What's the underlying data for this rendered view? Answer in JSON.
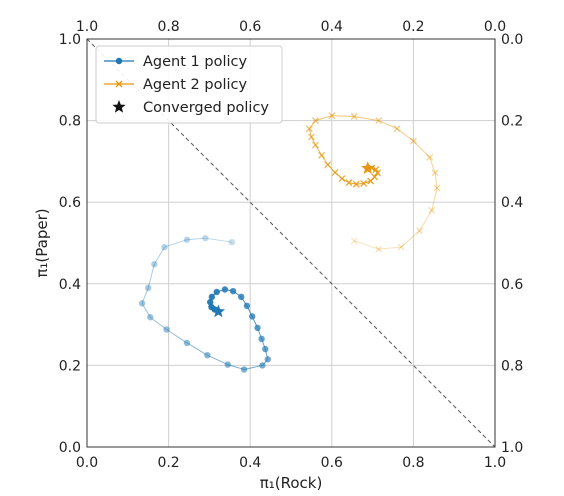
{
  "chart_data": {
    "type": "scatter",
    "xlabel": "π₁(Rock)",
    "ylabel": "π₁(Paper)",
    "xlim": [
      0.0,
      1.0
    ],
    "ylim": [
      0.0,
      1.0
    ],
    "grid": true,
    "legend_position": "top-left",
    "bottom_ticks": [
      "0.0",
      "0.2",
      "0.4",
      "0.6",
      "0.8",
      "1.0"
    ],
    "left_ticks": [
      "0.0",
      "0.2",
      "0.4",
      "0.6",
      "0.8",
      "1.0"
    ],
    "top_ticks": [
      "1.0",
      "0.8",
      "0.6",
      "0.4",
      "0.2",
      "0.0"
    ],
    "right_ticks": [
      "0.0",
      "0.2",
      "0.4",
      "0.6",
      "0.8",
      "1.0"
    ],
    "diagonal": {
      "from": [
        0.0,
        1.0
      ],
      "to": [
        1.0,
        0.0
      ],
      "style": "dashed"
    },
    "series": [
      {
        "name": "Agent 1 policy",
        "marker": "circle",
        "color": "#1f77b4",
        "points": [
          [
            0.355,
            0.502
          ],
          [
            0.29,
            0.512
          ],
          [
            0.245,
            0.508
          ],
          [
            0.19,
            0.49
          ],
          [
            0.165,
            0.448
          ],
          [
            0.15,
            0.39
          ],
          [
            0.135,
            0.352
          ],
          [
            0.155,
            0.318
          ],
          [
            0.195,
            0.288
          ],
          [
            0.245,
            0.255
          ],
          [
            0.295,
            0.225
          ],
          [
            0.345,
            0.202
          ],
          [
            0.385,
            0.19
          ],
          [
            0.43,
            0.2
          ],
          [
            0.443,
            0.215
          ],
          [
            0.437,
            0.24
          ],
          [
            0.428,
            0.265
          ],
          [
            0.418,
            0.292
          ],
          [
            0.405,
            0.32
          ],
          [
            0.392,
            0.346
          ],
          [
            0.378,
            0.368
          ],
          [
            0.358,
            0.382
          ],
          [
            0.338,
            0.386
          ],
          [
            0.318,
            0.38
          ],
          [
            0.306,
            0.368
          ],
          [
            0.302,
            0.355
          ],
          [
            0.305,
            0.343
          ],
          [
            0.313,
            0.337
          ]
        ],
        "converged": [
          0.322,
          0.332
        ]
      },
      {
        "name": "Agent 2 policy",
        "marker": "x",
        "color": "#e8960f",
        "points": [
          [
            0.655,
            0.505
          ],
          [
            0.715,
            0.485
          ],
          [
            0.77,
            0.49
          ],
          [
            0.815,
            0.53
          ],
          [
            0.845,
            0.58
          ],
          [
            0.858,
            0.635
          ],
          [
            0.853,
            0.672
          ],
          [
            0.84,
            0.71
          ],
          [
            0.8,
            0.75
          ],
          [
            0.76,
            0.78
          ],
          [
            0.715,
            0.8
          ],
          [
            0.655,
            0.81
          ],
          [
            0.6,
            0.812
          ],
          [
            0.56,
            0.8
          ],
          [
            0.545,
            0.78
          ],
          [
            0.55,
            0.76
          ],
          [
            0.56,
            0.74
          ],
          [
            0.575,
            0.715
          ],
          [
            0.59,
            0.692
          ],
          [
            0.608,
            0.673
          ],
          [
            0.625,
            0.658
          ],
          [
            0.642,
            0.648
          ],
          [
            0.66,
            0.644
          ],
          [
            0.678,
            0.646
          ],
          [
            0.695,
            0.652
          ],
          [
            0.705,
            0.662
          ],
          [
            0.712,
            0.672
          ],
          [
            0.708,
            0.68
          ],
          [
            0.698,
            0.684
          ]
        ],
        "converged": [
          0.688,
          0.683
        ]
      }
    ],
    "legend": [
      {
        "label": "Agent 1 policy",
        "marker": "circle",
        "color": "#1f77b4"
      },
      {
        "label": "Agent 2 policy",
        "marker": "x",
        "color": "#e8960f"
      },
      {
        "label": "Converged policy",
        "marker": "star",
        "color": "#111111"
      }
    ]
  }
}
